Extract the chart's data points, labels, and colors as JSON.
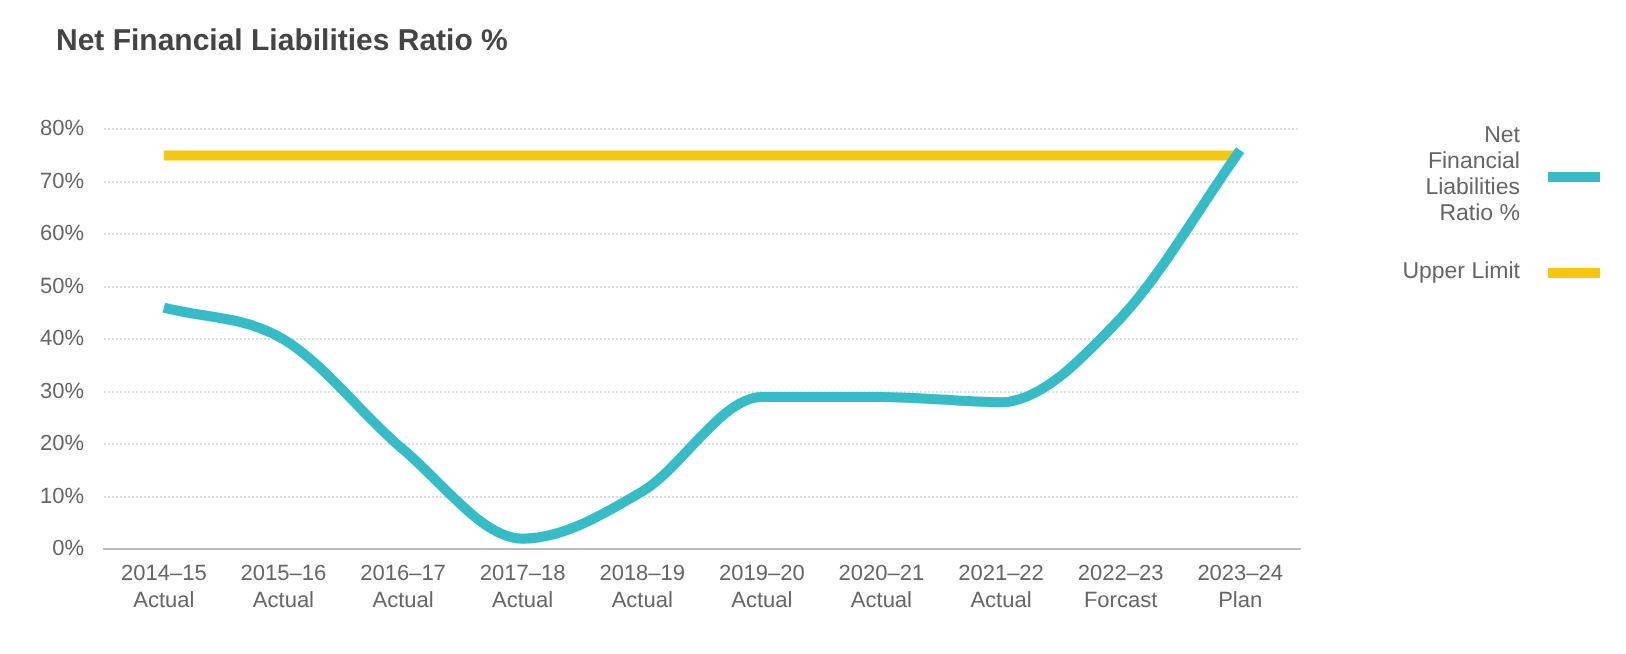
{
  "chart_data": {
    "type": "line",
    "title": "Net Financial Liabilities Ratio %",
    "categories": [
      "2014–15\nActual",
      "2015–16\nActual",
      "2016–17\nActual",
      "2017–18\nActual",
      "2018–19\nActual",
      "2019–20\nActual",
      "2020–21\nActual",
      "2021–22\nActual",
      "2022–23\nForcast",
      "2023–24\nPlan"
    ],
    "series": [
      {
        "name": "Net Financial Liabilities Ratio %",
        "color": "#36bcc6",
        "values": [
          46,
          40,
          19,
          2,
          11,
          29,
          29,
          28,
          44,
          76
        ]
      },
      {
        "name": "Upper Limit",
        "color": "#f4c712",
        "values": [
          75,
          75,
          75,
          75,
          75,
          75,
          75,
          75,
          75,
          75
        ]
      }
    ],
    "ylim": [
      0,
      80
    ],
    "yticks": [
      {
        "value": 0,
        "label": "0%"
      },
      {
        "value": 10,
        "label": "10%"
      },
      {
        "value": 20,
        "label": "20%"
      },
      {
        "value": 30,
        "label": "30%"
      },
      {
        "value": 40,
        "label": "40%"
      },
      {
        "value": 50,
        "label": "50%"
      },
      {
        "value": 60,
        "label": "60%"
      },
      {
        "value": 70,
        "label": "70%"
      },
      {
        "value": 80,
        "label": "80%"
      }
    ],
    "grid": "y",
    "legend": "right",
    "marker": "none",
    "line_style": "solid"
  }
}
